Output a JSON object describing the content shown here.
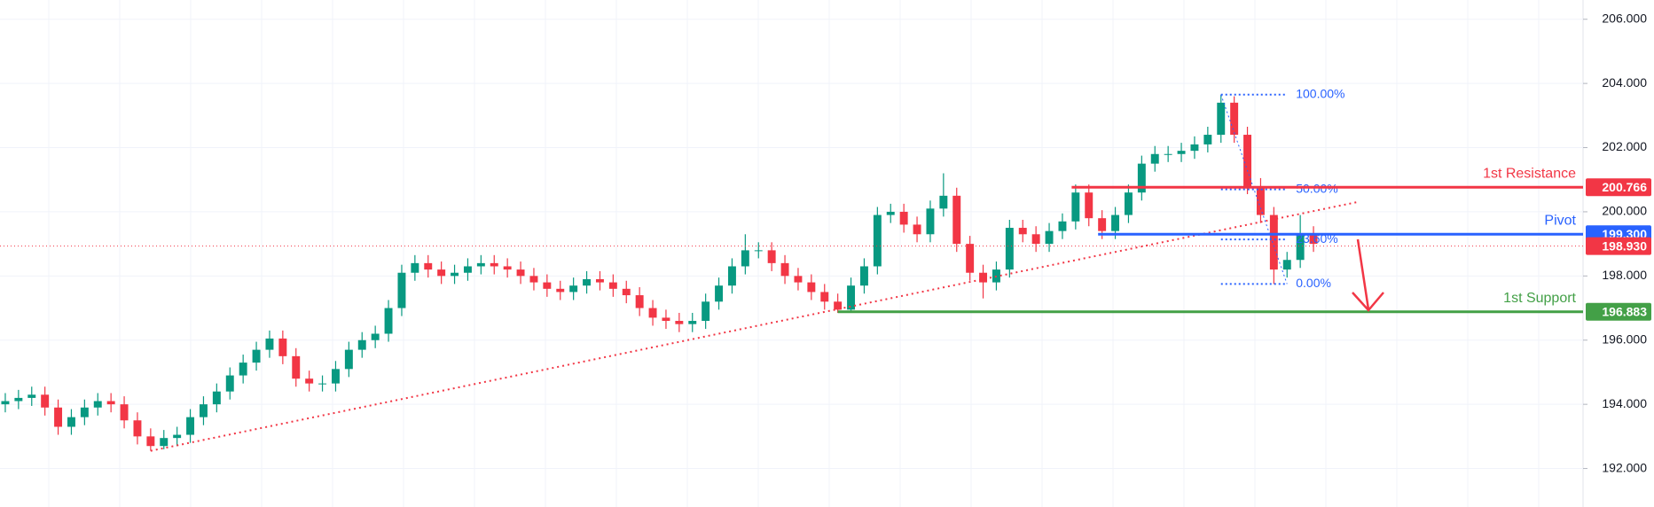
{
  "chart_data": {
    "type": "candlestick",
    "up_color": "#089981",
    "down_color": "#f23645",
    "ylim": [
      190.8,
      206.6
    ],
    "xlim": [
      -0.4,
      119.4
    ],
    "yticks": [
      {
        "value": 192,
        "label": "192.000"
      },
      {
        "value": 194,
        "label": "194.000"
      },
      {
        "value": 196,
        "label": "196.000"
      },
      {
        "value": 198,
        "label": "198.000"
      },
      {
        "value": 200,
        "label": "200.000"
      },
      {
        "value": 202,
        "label": "202.000"
      },
      {
        "value": 204,
        "label": "204.000"
      },
      {
        "value": 206,
        "label": "206.000"
      }
    ],
    "grid": true,
    "open": [
      194.0,
      194.1,
      194.2,
      194.3,
      193.9,
      193.3,
      193.6,
      193.9,
      194.1,
      194.0,
      193.5,
      193.0,
      192.7,
      192.95,
      193.05,
      193.6,
      194.0,
      194.4,
      194.9,
      195.3,
      195.7,
      196.05,
      195.5,
      194.8,
      194.65,
      194.65,
      195.1,
      195.7,
      196.0,
      196.2,
      197.0,
      198.1,
      198.4,
      198.2,
      198.0,
      198.1,
      198.3,
      198.4,
      198.3,
      198.2,
      198.0,
      197.8,
      197.6,
      197.5,
      197.7,
      197.9,
      197.8,
      197.6,
      197.4,
      197.0,
      196.7,
      196.6,
      196.5,
      196.6,
      197.2,
      197.7,
      198.3,
      198.8,
      198.8,
      198.4,
      198.0,
      197.8,
      197.5,
      197.2,
      196.95,
      197.7,
      198.3,
      199.9,
      200.0,
      199.6,
      199.3,
      200.1,
      200.5,
      199.0,
      198.1,
      197.8,
      198.2,
      199.5,
      199.3,
      199.0,
      199.4,
      199.7,
      200.6,
      199.8,
      199.4,
      199.9,
      200.6,
      201.5,
      201.8,
      201.8,
      201.9,
      202.1,
      202.4,
      203.4,
      202.4,
      200.8,
      199.9,
      198.2,
      198.5,
      199.3
    ],
    "high": [
      194.35,
      194.45,
      194.55,
      194.55,
      194.15,
      193.85,
      194.15,
      194.35,
      194.35,
      194.25,
      193.75,
      193.25,
      193.2,
      193.3,
      193.85,
      194.25,
      194.65,
      195.15,
      195.55,
      195.95,
      196.3,
      196.3,
      195.75,
      195.05,
      194.9,
      195.35,
      195.95,
      196.25,
      196.45,
      197.25,
      198.35,
      198.65,
      198.65,
      198.45,
      198.35,
      198.55,
      198.65,
      198.65,
      198.55,
      198.45,
      198.25,
      198.05,
      197.85,
      197.95,
      198.15,
      198.15,
      198.05,
      197.85,
      197.65,
      197.25,
      196.95,
      196.85,
      196.85,
      197.45,
      197.95,
      198.55,
      199.3,
      199.05,
      199.05,
      198.65,
      198.25,
      198.05,
      197.75,
      197.45,
      197.95,
      198.55,
      200.15,
      200.25,
      200.25,
      199.85,
      200.35,
      201.2,
      200.75,
      199.25,
      198.35,
      198.45,
      199.75,
      199.75,
      199.55,
      199.65,
      199.95,
      200.85,
      200.85,
      200.05,
      200.15,
      200.85,
      201.75,
      202.05,
      202.05,
      202.15,
      202.35,
      202.65,
      203.65,
      203.6,
      202.65,
      201.05,
      200.15,
      198.75,
      199.9,
      199.55
    ],
    "low": [
      193.75,
      193.85,
      193.95,
      193.65,
      193.05,
      193.05,
      193.35,
      193.65,
      193.75,
      193.25,
      192.75,
      192.55,
      192.6,
      192.7,
      192.8,
      193.35,
      193.75,
      194.15,
      194.65,
      195.05,
      195.45,
      195.25,
      194.55,
      194.4,
      194.4,
      194.4,
      194.85,
      195.45,
      195.75,
      195.95,
      196.75,
      197.85,
      197.95,
      197.75,
      197.75,
      197.85,
      198.05,
      198.05,
      197.95,
      197.75,
      197.55,
      197.35,
      197.25,
      197.25,
      197.45,
      197.55,
      197.35,
      197.15,
      196.75,
      196.45,
      196.35,
      196.25,
      196.25,
      196.35,
      196.95,
      197.45,
      198.05,
      198.55,
      198.15,
      197.75,
      197.55,
      197.25,
      196.95,
      196.85,
      196.85,
      197.45,
      198.05,
      199.65,
      199.35,
      199.05,
      199.05,
      199.85,
      198.75,
      197.85,
      197.3,
      197.55,
      197.95,
      199.05,
      198.75,
      198.75,
      199.15,
      199.45,
      199.55,
      199.15,
      199.15,
      199.65,
      200.35,
      201.25,
      201.55,
      201.55,
      201.65,
      201.85,
      202.15,
      202.15,
      200.55,
      199.65,
      197.75,
      197.95,
      198.25,
      198.75
    ],
    "close": [
      194.1,
      194.2,
      194.3,
      193.9,
      193.3,
      193.6,
      193.9,
      194.1,
      194.0,
      193.5,
      193.0,
      192.7,
      192.95,
      193.05,
      193.6,
      194.0,
      194.4,
      194.9,
      195.3,
      195.7,
      196.05,
      195.5,
      194.8,
      194.65,
      194.65,
      195.1,
      195.7,
      196.0,
      196.2,
      197.0,
      198.1,
      198.4,
      198.2,
      198.0,
      198.1,
      198.3,
      198.4,
      198.3,
      198.2,
      198.0,
      197.8,
      197.6,
      197.5,
      197.7,
      197.9,
      197.8,
      197.6,
      197.4,
      197.0,
      196.7,
      196.6,
      196.5,
      196.6,
      197.2,
      197.7,
      198.3,
      198.8,
      198.8,
      198.4,
      198.0,
      197.8,
      197.5,
      197.2,
      196.95,
      197.7,
      198.3,
      199.9,
      200.0,
      199.6,
      199.3,
      200.1,
      200.5,
      199.0,
      198.1,
      197.8,
      198.2,
      199.5,
      199.3,
      199.0,
      199.4,
      199.7,
      200.6,
      199.8,
      199.4,
      199.9,
      200.6,
      201.5,
      201.8,
      201.8,
      201.9,
      202.1,
      202.4,
      203.4,
      202.4,
      200.8,
      199.9,
      198.2,
      198.5,
      199.3,
      199.0
    ],
    "trendline": {
      "x": [
        11,
        102.4
      ],
      "y": [
        192.55,
        200.31
      ],
      "color": "#f23645"
    },
    "current_price": {
      "price": {
        "value": 198.93,
        "label": "198.930"
      },
      "color": "#f23645"
    },
    "levels": [
      {
        "name": "1st Resistance",
        "price": 200.766,
        "color": "#f23645",
        "start": 80.7
      },
      {
        "name": "Pivot",
        "price": {
          "value": 199.3,
          "label": "199.300"
        },
        "color": "#2962ff",
        "start": 82.7
      },
      {
        "name": "1st Support",
        "price": 196.883,
        "color": "#43a047",
        "start": 63
      }
    ],
    "fib": {
      "x": [
        92,
        97
      ],
      "color": "#2962ff",
      "levels": [
        {
          "value": 203.65,
          "label": "100.00%"
        },
        {
          "value": 200.7,
          "label": "50.00%"
        },
        {
          "value": 199.14,
          "label": "23.60%"
        },
        {
          "value": 197.75,
          "label": "0.00%"
        }
      ]
    }
  }
}
